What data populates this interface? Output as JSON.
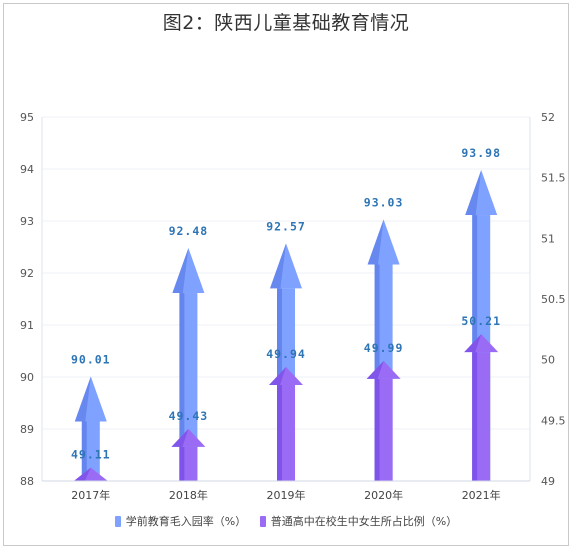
{
  "title": "图2：陕西儿童基础教育情况",
  "chart_data": {
    "type": "bar",
    "categories": [
      "2017年",
      "2018年",
      "2019年",
      "2020年",
      "2021年"
    ],
    "series": [
      {
        "name": "学前教育毛入园率（%）",
        "axis": "left",
        "color": "#7fa1ff",
        "color_dark": "#4e6fe0",
        "values": [
          90.01,
          92.48,
          92.57,
          93.03,
          93.98
        ],
        "labels": [
          "90.01",
          "92.48",
          "92.57",
          "93.03",
          "93.98"
        ]
      },
      {
        "name": "普通高中在校生中女生所占比例（%）",
        "axis": "right",
        "color": "#9a6cf5",
        "color_dark": "#6a3ee0",
        "values": [
          49.11,
          49.43,
          49.94,
          49.99,
          50.21
        ],
        "labels": [
          "49.11",
          "49.43",
          "49.94",
          "49.99",
          "50.21"
        ]
      }
    ],
    "y_left": {
      "min": 88,
      "max": 95,
      "ticks": [
        "88",
        "89",
        "90",
        "91",
        "92",
        "93",
        "94",
        "95"
      ]
    },
    "y_right": {
      "min": 49,
      "max": 52,
      "ticks": [
        "49",
        "49.5",
        "50",
        "50.5",
        "51",
        "51.5",
        "52"
      ]
    },
    "grid": true,
    "legend_position": "bottom"
  }
}
